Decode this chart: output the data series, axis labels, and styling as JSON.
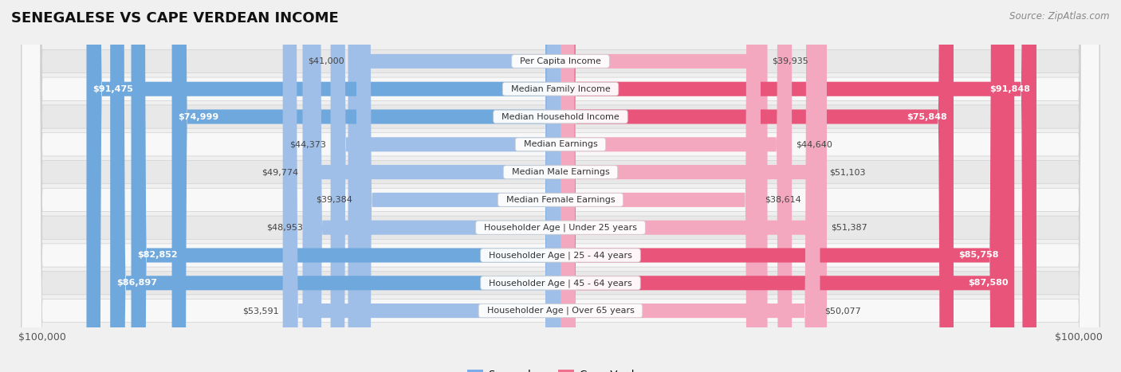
{
  "title": "SENEGALESE VS CAPE VERDEAN INCOME",
  "source": "Source: ZipAtlas.com",
  "max_value": 100000,
  "categories": [
    "Per Capita Income",
    "Median Family Income",
    "Median Household Income",
    "Median Earnings",
    "Median Male Earnings",
    "Median Female Earnings",
    "Householder Age | Under 25 years",
    "Householder Age | 25 - 44 years",
    "Householder Age | 45 - 64 years",
    "Householder Age | Over 65 years"
  ],
  "senegalese": [
    41000,
    91475,
    74999,
    44373,
    49774,
    39384,
    48953,
    82852,
    86897,
    53591
  ],
  "cape_verdean": [
    39935,
    91848,
    75848,
    44640,
    51103,
    38614,
    51387,
    85758,
    87580,
    50077
  ],
  "senegalese_labels": [
    "$41,000",
    "$91,475",
    "$74,999",
    "$44,373",
    "$49,774",
    "$39,384",
    "$48,953",
    "$82,852",
    "$86,897",
    "$53,591"
  ],
  "cape_verdean_labels": [
    "$39,935",
    "$91,848",
    "$75,848",
    "$44,640",
    "$51,103",
    "$38,614",
    "$51,387",
    "$85,758",
    "$87,580",
    "$50,077"
  ],
  "color_senegalese": "#a0bfe8",
  "color_senegalese_full": "#6fa8dc",
  "color_cape_verdean": "#f4a8c0",
  "color_cape_verdean_full": "#e8547a",
  "color_senegalese_legend": "#7aadea",
  "color_cape_verdean_legend": "#f07090",
  "background_color": "#f0f0f0",
  "row_bg_light": "#e8e8e8",
  "row_bg_white": "#f8f8f8",
  "label_threshold": 60000
}
